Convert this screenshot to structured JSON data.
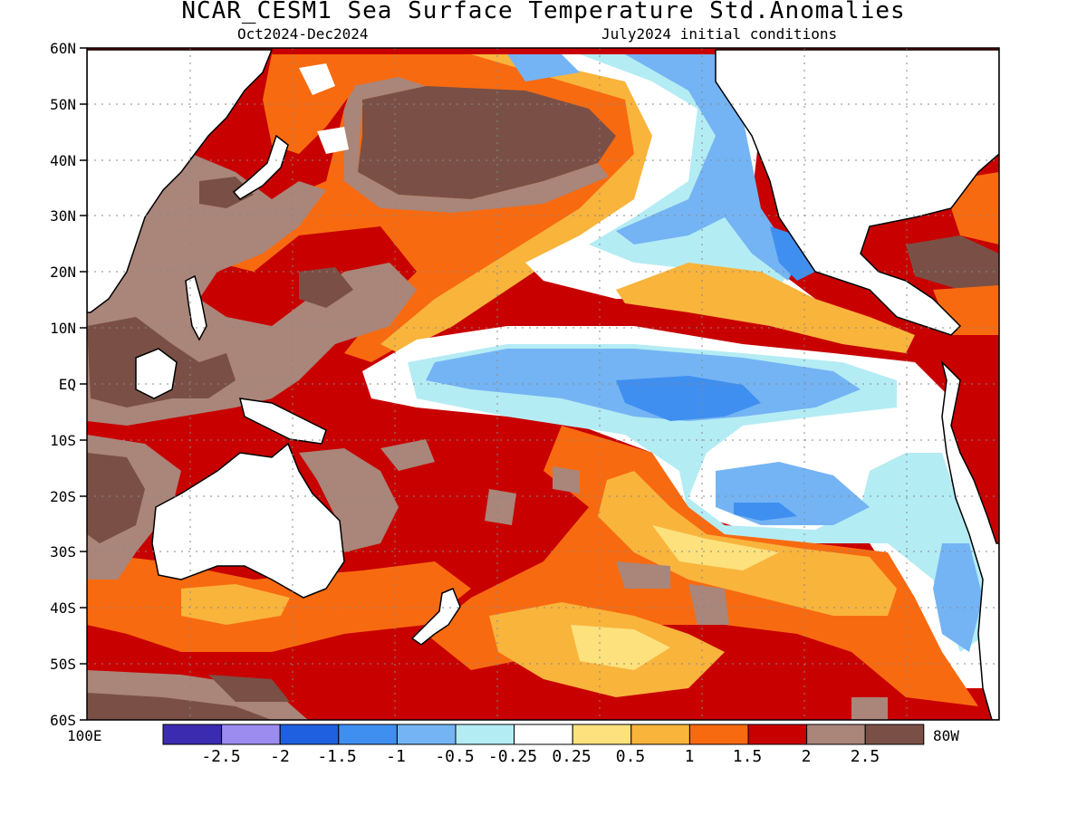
{
  "header": {
    "title": "NCAR_CESM1 Sea Surface Temperature Std.Anomalies",
    "period": "Oct2024-Dec2024",
    "init": "July2024 initial conditions"
  },
  "map": {
    "lon_range": [
      "100E",
      "80W"
    ],
    "lat_labels": [
      "60N",
      "50N",
      "40N",
      "30N",
      "20N",
      "10N",
      "EQ",
      "10S",
      "20S",
      "30S",
      "40S",
      "50S",
      "60S"
    ]
  },
  "colorbar": {
    "labels": [
      "-2.5",
      "-2",
      "-1.5",
      "-1",
      "-0.5",
      "-0.25",
      "0.25",
      "0.5",
      "1",
      "1.5",
      "2",
      "2.5"
    ],
    "colors": [
      "#3b2bb0",
      "#9d8cf0",
      "#1e60e0",
      "#3f8ff0",
      "#74b4f4",
      "#b4ecf4",
      "#ffffff",
      "#fce17c",
      "#f9b43c",
      "#f86a10",
      "#c80000",
      "#aa8579",
      "#7a5046"
    ]
  },
  "palette": {
    "brown": "#7a5046",
    "tan": "#aa8579",
    "red": "#c80000",
    "orange": "#f86a10",
    "amber": "#f9b43c",
    "yellow": "#fce17c",
    "white": "#ffffff",
    "lightcyan": "#b4ecf4",
    "lightblue": "#74b4f4",
    "blue": "#3f8ff0",
    "darkblue": "#1e60e0"
  }
}
